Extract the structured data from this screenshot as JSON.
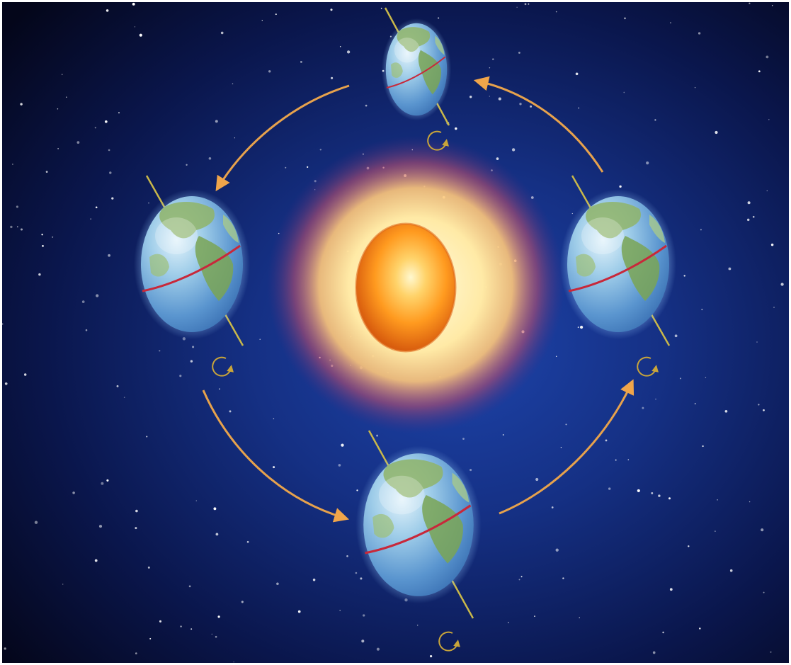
{
  "scene": {
    "subject": "earth-orbit-seasons",
    "colors": {
      "space_core": "#1b3c9c",
      "space_mid": "#0c1a5a",
      "space_edge": "#05081d",
      "frame": "#ffffff",
      "sun_core": "#fff6c8",
      "sun_mid": "#ff9a1f",
      "sun_edge": "#d95a0c",
      "sun_halo": "#ffe9a0",
      "sun_halo_outer": "#b23a4a",
      "orbit_arrow": "#e7a24c",
      "rotation_marker": "#c9a53a",
      "axis": "#c9b84a",
      "ocean": "#4f86c6",
      "ocean_light": "#a9d3ef",
      "land": "#7fa85a",
      "equator": "#c8283a"
    },
    "earths": [
      {
        "position": "top",
        "icon": "earth-globe-icon"
      },
      {
        "position": "left",
        "icon": "earth-globe-icon"
      },
      {
        "position": "right",
        "icon": "earth-globe-icon"
      },
      {
        "position": "bottom",
        "icon": "earth-globe-icon"
      }
    ],
    "sun": {
      "icon": "sun-icon"
    },
    "orbit_direction": "counter-clockwise",
    "rotation_marker_icon": "rotation-arrow-icon",
    "orbit_arrow_icon": "orbit-arrow-icon"
  }
}
